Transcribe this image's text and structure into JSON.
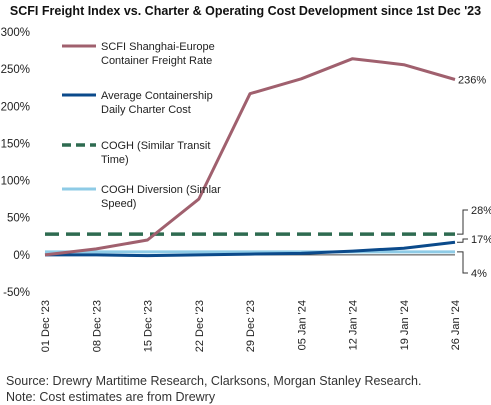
{
  "chart_data": {
    "type": "line",
    "title": "SCFI Freight Index vs. Charter & Operating Cost Development since 1st Dec '23",
    "categories": [
      "01 Dec '23",
      "08 Dec '23",
      "15 Dec '23",
      "22 Dec '23",
      "29 Dec '23",
      "05 Jan '24",
      "12 Jan '24",
      "19 Jan '24",
      "26 Jan '24"
    ],
    "ylim": [
      -50,
      300
    ],
    "yticks": [
      "-50%",
      "0%",
      "50%",
      "100%",
      "150%",
      "200%",
      "250%",
      "300%"
    ],
    "ytick_values": [
      -50,
      0,
      50,
      100,
      150,
      200,
      250,
      300
    ],
    "grid": false,
    "legend_position": "top-left",
    "series": [
      {
        "name": "SCFI Shanghai-Europe Container Freight Rate",
        "name_lines": [
          "SCFI Shanghai-Europe",
          "Container Freight Rate"
        ],
        "values": [
          0,
          8,
          20,
          75,
          217,
          237,
          264,
          256,
          236
        ],
        "color": "#a0606e",
        "dash": "solid",
        "end_label": "236%"
      },
      {
        "name": "Average Containership Daily Charter Cost",
        "name_lines": [
          "Average Containership",
          "Daily Charter Cost"
        ],
        "values": [
          0,
          0,
          -1,
          0,
          1,
          2,
          5,
          9,
          17
        ],
        "color": "#0b4a8b",
        "dash": "solid",
        "end_label": "17%"
      },
      {
        "name": "COGH (Similar Transit Time)",
        "name_lines": [
          "COGH (Similar Transit",
          "Time)"
        ],
        "values": [
          28,
          28,
          28,
          28,
          28,
          28,
          28,
          28,
          28
        ],
        "color": "#2e6b50",
        "dash": "dashed",
        "end_label": "28%"
      },
      {
        "name": "COGH Diversion (Similar Speed)",
        "name_lines": [
          "COGH Diversion (Simlar",
          "Speed)"
        ],
        "values": [
          4,
          4,
          4,
          4,
          4,
          4,
          4,
          4,
          4
        ],
        "color": "#8ecbe6",
        "dash": "solid",
        "end_label": "4%"
      }
    ]
  },
  "source_lines": [
    "Source: Drewry Martitime Research, Clarksons, Morgan Stanley Research.",
    "Note: Cost estimates are from Drewry"
  ]
}
